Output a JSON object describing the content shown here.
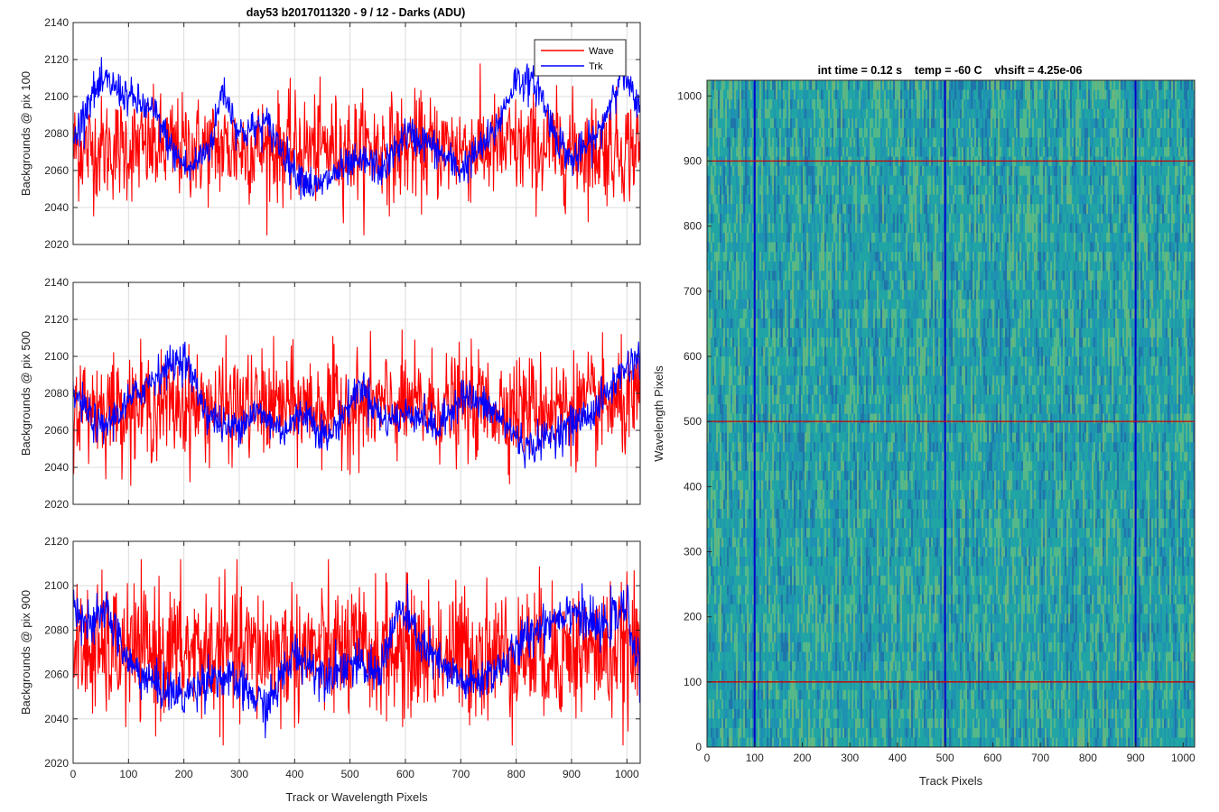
{
  "figure_title": "day53 b2017011320 - 9 / 12 - Darks (ADU)",
  "heatmap_title": "int time = 0.12 s    temp = -60 C    vhsift = 4.25e-06",
  "legend": {
    "wave_label": "Wave",
    "trk_label": "Trk",
    "wave_color": "#ff0000",
    "trk_color": "#0000ff"
  },
  "chart_data": [
    {
      "type": "line",
      "ylabel": "Backgrounds @ pix 100",
      "xlabel": "",
      "xlim": [
        0,
        1024
      ],
      "ylim": [
        2020,
        2140
      ],
      "yticks": [
        2020,
        2040,
        2060,
        2080,
        2100,
        2120,
        2140
      ],
      "xticks": [
        0,
        100,
        200,
        300,
        400,
        500,
        600,
        700,
        800,
        900,
        1000
      ],
      "series": [
        {
          "name": "Wave",
          "color": "#ff0000",
          "mean": 2072,
          "noise": 14,
          "min": 2025,
          "max": 2137
        },
        {
          "name": "Trk",
          "color": "#0000ff",
          "anchors": [
            [
              0,
              2075
            ],
            [
              30,
              2100
            ],
            [
              60,
              2108
            ],
            [
              100,
              2100
            ],
            [
              150,
              2090
            ],
            [
              180,
              2070
            ],
            [
              210,
              2060
            ],
            [
              250,
              2075
            ],
            [
              270,
              2105
            ],
            [
              300,
              2080
            ],
            [
              350,
              2085
            ],
            [
              400,
              2060
            ],
            [
              440,
              2050
            ],
            [
              480,
              2060
            ],
            [
              530,
              2065
            ],
            [
              560,
              2060
            ],
            [
              600,
              2080
            ],
            [
              640,
              2075
            ],
            [
              700,
              2060
            ],
            [
              760,
              2080
            ],
            [
              800,
              2110
            ],
            [
              840,
              2105
            ],
            [
              870,
              2080
            ],
            [
              900,
              2065
            ],
            [
              950,
              2080
            ],
            [
              990,
              2115
            ],
            [
              1024,
              2090
            ]
          ]
        }
      ]
    },
    {
      "type": "line",
      "ylabel": "Backgrounds @ pix 500",
      "xlabel": "",
      "xlim": [
        0,
        1024
      ],
      "ylim": [
        2020,
        2140
      ],
      "yticks": [
        2020,
        2040,
        2060,
        2080,
        2100,
        2120,
        2140
      ],
      "xticks": [
        0,
        100,
        200,
        300,
        400,
        500,
        600,
        700,
        800,
        900,
        1000
      ],
      "series": [
        {
          "name": "Wave",
          "color": "#ff0000",
          "mean": 2073,
          "noise": 14,
          "min": 2030,
          "max": 2124
        },
        {
          "name": "Trk",
          "color": "#0000ff",
          "anchors": [
            [
              0,
              2080
            ],
            [
              50,
              2060
            ],
            [
              100,
              2075
            ],
            [
              150,
              2090
            ],
            [
              200,
              2100
            ],
            [
              240,
              2070
            ],
            [
              280,
              2060
            ],
            [
              330,
              2070
            ],
            [
              380,
              2060
            ],
            [
              420,
              2070
            ],
            [
              460,
              2055
            ],
            [
              520,
              2085
            ],
            [
              560,
              2065
            ],
            [
              620,
              2070
            ],
            [
              660,
              2060
            ],
            [
              700,
              2080
            ],
            [
              760,
              2070
            ],
            [
              820,
              2050
            ],
            [
              880,
              2060
            ],
            [
              940,
              2070
            ],
            [
              1000,
              2095
            ],
            [
              1024,
              2100
            ]
          ]
        }
      ]
    },
    {
      "type": "line",
      "ylabel": "Backgrounds @ pix 900",
      "xlabel": "Track or Wavelength Pixels",
      "xlim": [
        0,
        1024
      ],
      "ylim": [
        2020,
        2120
      ],
      "yticks": [
        2020,
        2040,
        2060,
        2080,
        2100,
        2120
      ],
      "xticks": [
        0,
        100,
        200,
        300,
        400,
        500,
        600,
        700,
        800,
        900,
        1000
      ],
      "series": [
        {
          "name": "Wave",
          "color": "#ff0000",
          "mean": 2070,
          "noise": 15,
          "min": 2028,
          "max": 2112
        },
        {
          "name": "Trk",
          "color": "#0000ff",
          "anchors": [
            [
              0,
              2095
            ],
            [
              30,
              2080
            ],
            [
              60,
              2090
            ],
            [
              100,
              2065
            ],
            [
              150,
              2055
            ],
            [
              200,
              2050
            ],
            [
              250,
              2060
            ],
            [
              300,
              2055
            ],
            [
              350,
              2045
            ],
            [
              400,
              2070
            ],
            [
              450,
              2060
            ],
            [
              500,
              2065
            ],
            [
              550,
              2060
            ],
            [
              590,
              2090
            ],
            [
              640,
              2070
            ],
            [
              680,
              2060
            ],
            [
              720,
              2055
            ],
            [
              780,
              2065
            ],
            [
              830,
              2080
            ],
            [
              900,
              2090
            ],
            [
              950,
              2080
            ],
            [
              1000,
              2090
            ],
            [
              1024,
              2060
            ]
          ]
        }
      ]
    },
    {
      "type": "heatmap",
      "title": "int time = 0.12 s    temp = -60 C    vhsift = 4.25e-06",
      "xlabel": "Track Pixels",
      "ylabel": "Wavelength Pixels",
      "xlim": [
        0,
        1024
      ],
      "ylim": [
        0,
        1024
      ],
      "xticks": [
        0,
        100,
        200,
        300,
        400,
        500,
        600,
        700,
        800,
        900,
        1000
      ],
      "yticks": [
        0,
        100,
        200,
        300,
        400,
        500,
        600,
        700,
        800,
        900,
        1000
      ],
      "colormap": [
        "#1f6ea8",
        "#1e90b5",
        "#22a8a3",
        "#5fbf82",
        "#9fcc5a"
      ],
      "h_markers": [
        100,
        500,
        900
      ],
      "v_markers": [
        100,
        500,
        900
      ],
      "h_marker_color": "#cc0000",
      "v_marker_color": "#0000cc"
    }
  ]
}
